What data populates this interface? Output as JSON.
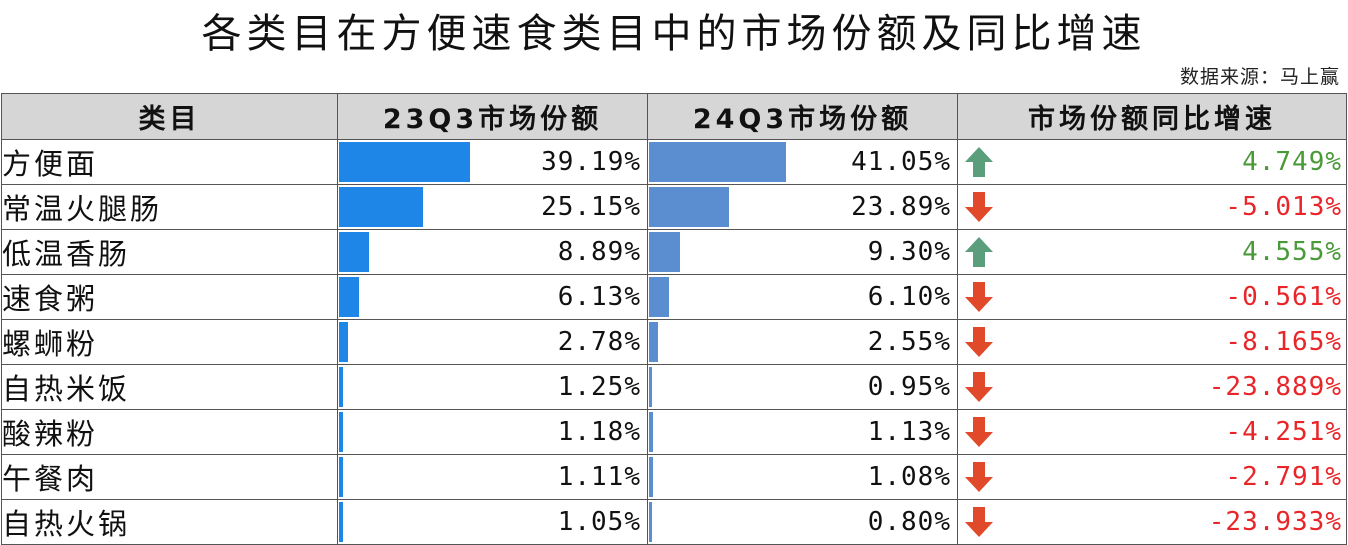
{
  "title": "各类目在方便速食类目中的市场份额及同比增速",
  "source": "数据来源：马上赢",
  "colors": {
    "bar_23q3": "#1e86e6",
    "bar_24q3": "#5a8ed0",
    "up": "#5a9e7c",
    "down": "#e04a2a",
    "up_text": "#4a9a3a",
    "down_text": "#e8262a"
  },
  "headers": [
    "类目",
    "23Q3市场份额",
    "24Q3市场份额",
    "市场份额同比增速"
  ],
  "chart_data": {
    "type": "table",
    "columns": [
      "类目",
      "23Q3市场份额",
      "24Q3市场份额",
      "市场份额同比增速"
    ],
    "rows": [
      {
        "category": "方便面",
        "q23": 39.19,
        "q23_text": "39.19%",
        "q24": 41.05,
        "q24_text": "41.05%",
        "yoy": 4.749,
        "yoy_text": "4.749%",
        "dir": "up"
      },
      {
        "category": "常温火腿肠",
        "q23": 25.15,
        "q23_text": "25.15%",
        "q24": 23.89,
        "q24_text": "23.89%",
        "yoy": -5.013,
        "yoy_text": "-5.013%",
        "dir": "down"
      },
      {
        "category": "低温香肠",
        "q23": 8.89,
        "q23_text": "8.89%",
        "q24": 9.3,
        "q24_text": "9.30%",
        "yoy": 4.555,
        "yoy_text": "4.555%",
        "dir": "up"
      },
      {
        "category": "速食粥",
        "q23": 6.13,
        "q23_text": "6.13%",
        "q24": 6.1,
        "q24_text": "6.10%",
        "yoy": -0.561,
        "yoy_text": "-0.561%",
        "dir": "down"
      },
      {
        "category": "螺蛳粉",
        "q23": 2.78,
        "q23_text": "2.78%",
        "q24": 2.55,
        "q24_text": "2.55%",
        "yoy": -8.165,
        "yoy_text": "-8.165%",
        "dir": "down"
      },
      {
        "category": "自热米饭",
        "q23": 1.25,
        "q23_text": "1.25%",
        "q24": 0.95,
        "q24_text": "0.95%",
        "yoy": -23.889,
        "yoy_text": "-23.889%",
        "dir": "down"
      },
      {
        "category": "酸辣粉",
        "q23": 1.18,
        "q23_text": "1.18%",
        "q24": 1.13,
        "q24_text": "1.13%",
        "yoy": -4.251,
        "yoy_text": "-4.251%",
        "dir": "down"
      },
      {
        "category": "午餐肉",
        "q23": 1.11,
        "q23_text": "1.11%",
        "q24": 1.08,
        "q24_text": "1.08%",
        "yoy": -2.791,
        "yoy_text": "-2.791%",
        "dir": "down"
      },
      {
        "category": "自热火锅",
        "q23": 1.05,
        "q23_text": "1.05%",
        "q24": 0.8,
        "q24_text": "0.80%",
        "yoy": -23.933,
        "yoy_text": "-23.933%",
        "dir": "down"
      }
    ]
  }
}
